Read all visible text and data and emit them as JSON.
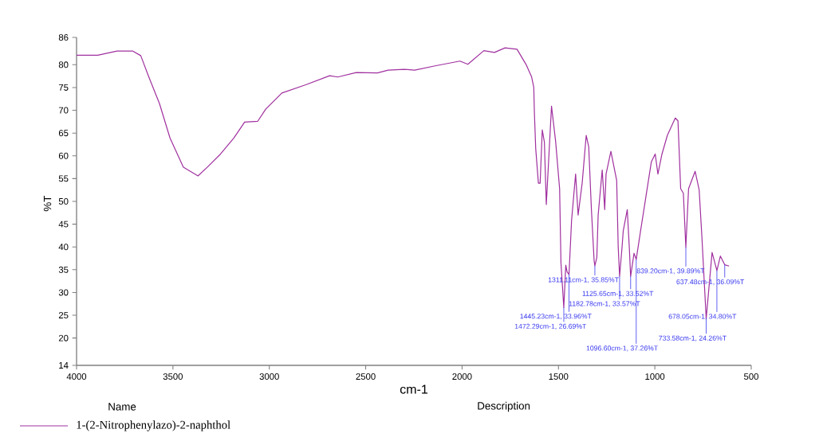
{
  "chart_data": {
    "type": "line",
    "xlabel": "cm-1",
    "ylabel": "%T",
    "x": [
      4000,
      3890,
      3790,
      3708,
      3667,
      3625,
      3570,
      3515,
      3446,
      3370,
      3322,
      3253,
      3184,
      3128,
      3060,
      3018,
      2935,
      2811,
      2687,
      2645,
      2549,
      2439,
      2384,
      2301,
      2246,
      2135,
      2011,
      1970,
      1887,
      1832,
      1777,
      1715,
      1666,
      1639,
      1628,
      1625,
      1618,
      1604,
      1595,
      1584,
      1573,
      1563,
      1536,
      1515,
      1494,
      1487,
      1472.29,
      1462,
      1455,
      1445.23,
      1432,
      1411,
      1398,
      1377,
      1356,
      1343,
      1329,
      1315,
      1311.11,
      1301,
      1294,
      1273,
      1260,
      1253,
      1228,
      1198,
      1190,
      1182.78,
      1170,
      1164,
      1143,
      1132,
      1125.65,
      1108,
      1096.6,
      1074,
      1046,
      1018,
      998,
      984,
      963,
      935,
      894,
      880,
      866,
      852,
      839.2,
      825,
      791,
      770,
      756,
      733.58,
      703,
      678.05,
      660,
      637.48,
      615
    ],
    "series": [
      {
        "name": "1-(2-Nitrophenylazo)-2-naphthol",
        "color": "#a0309f",
        "values": [
          82.1,
          82.1,
          83.0,
          83.0,
          82.0,
          77.3,
          71.5,
          63.9,
          57.5,
          55.6,
          57.5,
          60.4,
          63.9,
          67.4,
          67.6,
          70.3,
          73.8,
          75.6,
          77.6,
          77.3,
          78.3,
          78.2,
          78.8,
          79.0,
          78.8,
          79.8,
          80.8,
          80.1,
          83.1,
          82.7,
          83.7,
          83.4,
          79.9,
          77.3,
          75.0,
          69.7,
          61.6,
          54.0,
          54.0,
          65.7,
          63.0,
          49.3,
          70.9,
          63.3,
          52.8,
          36.5,
          26.69,
          36.0,
          34.5,
          33.96,
          45.8,
          56.0,
          47.0,
          54.0,
          64.5,
          62.0,
          48.2,
          37.0,
          35.85,
          37.7,
          47.0,
          56.9,
          48.2,
          56.0,
          61.0,
          54.6,
          40.0,
          33.57,
          40.0,
          43.5,
          48.2,
          39.5,
          33.52,
          38.6,
          37.26,
          43.5,
          51.1,
          58.7,
          60.4,
          56.0,
          60.4,
          64.5,
          68.3,
          67.7,
          52.8,
          51.8,
          39.89,
          52.8,
          56.6,
          52.5,
          42.3,
          24.26,
          38.8,
          34.8,
          38.0,
          36.09,
          35.8
        ]
      }
    ],
    "xlim": [
      4000,
      500
    ],
    "xticks": [
      4000,
      3500,
      3000,
      2500,
      2000,
      1500,
      1000,
      500
    ],
    "ylim": [
      14,
      86
    ],
    "yticks": [
      14,
      20,
      25,
      30,
      35,
      40,
      45,
      50,
      55,
      60,
      65,
      70,
      75,
      80,
      86
    ],
    "legend": "bottom",
    "annotations": [
      {
        "text": "1311.11cm-1, 35.85%T",
        "x": 1311.11,
        "y": 35.85
      },
      {
        "text": "1125.65cm-1, 33.52%T",
        "x": 1125.65,
        "y": 33.52
      },
      {
        "text": "1182.78cm-1, 33.57%T",
        "x": 1182.78,
        "y": 33.57
      },
      {
        "text": "1445.23cm-1, 33.96%T",
        "x": 1445.23,
        "y": 33.96
      },
      {
        "text": "1472.29cm-1, 26.69%T",
        "x": 1472.29,
        "y": 26.69
      },
      {
        "text": "1096.60cm-1, 37.26%T",
        "x": 1096.6,
        "y": 37.26
      },
      {
        "text": "839.20cm-1, 39.89%T",
        "x": 839.2,
        "y": 39.89
      },
      {
        "text": "637.48cm-1, 36.09%T",
        "x": 637.48,
        "y": 36.09
      },
      {
        "text": "678.05cm-1, 34.80%T",
        "x": 678.05,
        "y": 34.8
      },
      {
        "text": "733.58cm-1, 24.26%T",
        "x": 733.58,
        "y": 24.26
      },
      "Name",
      "Description"
    ]
  }
}
